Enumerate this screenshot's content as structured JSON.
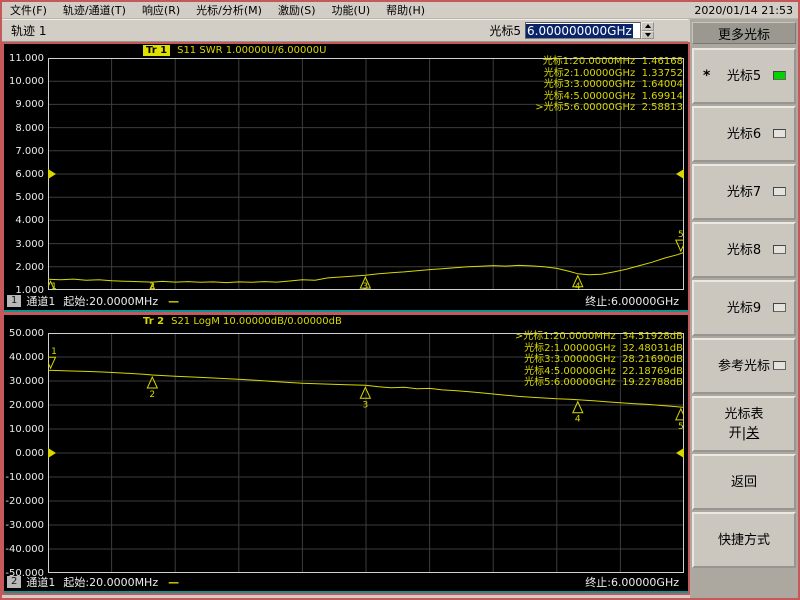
{
  "window": {
    "datetime": "2020/01/14 21:53"
  },
  "menu": {
    "items": [
      "文件(F)",
      "轨迹/通道(T)",
      "响应(R)",
      "光标/分析(M)",
      "激励(S)",
      "功能(U)",
      "帮助(H)"
    ]
  },
  "toolbar": {
    "trace_label": "轨迹 1",
    "marker_label": "光标5",
    "marker_value": "6.000000000GHz"
  },
  "sidebar": {
    "header": "更多光标",
    "buttons": [
      {
        "label": "光标5",
        "starred": true,
        "indicator": "on"
      },
      {
        "label": "光标6",
        "indicator": "off"
      },
      {
        "label": "光标7",
        "indicator": "off"
      },
      {
        "label": "光标8",
        "indicator": "off"
      },
      {
        "label": "光标9",
        "indicator": "off"
      },
      {
        "label": "参考光标",
        "indicator": "off"
      },
      {
        "label": "光标表",
        "label2": "开|关"
      },
      {
        "label": "返回"
      },
      {
        "label": "快捷方式"
      }
    ]
  },
  "colors": {
    "trace": "#d8d800",
    "grid": "#3c3c3c",
    "plot_border": "#d0d0d0",
    "accent_red": "#c4585a",
    "teal": "#0e9494",
    "led_green": "#00d400",
    "selection_blue": "#0a246a"
  },
  "chart_data": [
    {
      "type": "line",
      "name": "S11 SWR",
      "trace_badge": "Tr 1",
      "badge_highlight": true,
      "title": "S11 SWR 1.00000U/6.00000U",
      "ylim": [
        1.0,
        11.0
      ],
      "ytick_step": 1.0,
      "ref_value": 6.0,
      "x_start": 0.02,
      "x_stop": 6.0,
      "x_unit": "GHz",
      "channel_badge": "1",
      "channel_label": "通道1",
      "start_label": "起始:20.0000MHz",
      "stop_label": "终止:6.00000GHz",
      "readouts": [
        {
          "label": "光标1:20.0000MHz",
          "value": "1.46168",
          "active": false
        },
        {
          "label": "光标2:1.00000GHz",
          "value": "1.33752",
          "active": false
        },
        {
          "label": "光标3:3.00000GHz",
          "value": "1.64004",
          "active": false
        },
        {
          "label": "光标4:5.00000GHz",
          "value": "1.69914",
          "active": false
        },
        {
          "label": "光标5:6.00000GHz",
          "value": "2.58813",
          "active": true
        }
      ],
      "markers": [
        {
          "n": "1",
          "x": 0.004,
          "v": 1.46,
          "active": false
        },
        {
          "n": "2",
          "x": 0.164,
          "v": 1.34,
          "active": false
        },
        {
          "n": "3",
          "x": 0.499,
          "v": 1.64,
          "active": false
        },
        {
          "n": "4",
          "x": 0.833,
          "v": 1.7,
          "active": false
        },
        {
          "n": "5",
          "x": 0.995,
          "v": 2.59,
          "active": true
        }
      ],
      "trace": [
        [
          0,
          1.46
        ],
        [
          0.02,
          1.44
        ],
        [
          0.04,
          1.47
        ],
        [
          0.06,
          1.42
        ],
        [
          0.08,
          1.44
        ],
        [
          0.1,
          1.4
        ],
        [
          0.12,
          1.38
        ],
        [
          0.14,
          1.36
        ],
        [
          0.164,
          1.34
        ],
        [
          0.18,
          1.37
        ],
        [
          0.2,
          1.34
        ],
        [
          0.22,
          1.36
        ],
        [
          0.24,
          1.33
        ],
        [
          0.26,
          1.35
        ],
        [
          0.28,
          1.32
        ],
        [
          0.3,
          1.35
        ],
        [
          0.32,
          1.33
        ],
        [
          0.34,
          1.36
        ],
        [
          0.36,
          1.34
        ],
        [
          0.38,
          1.39
        ],
        [
          0.4,
          1.44
        ],
        [
          0.42,
          1.42
        ],
        [
          0.44,
          1.52
        ],
        [
          0.46,
          1.56
        ],
        [
          0.48,
          1.6
        ],
        [
          0.499,
          1.64
        ],
        [
          0.52,
          1.7
        ],
        [
          0.54,
          1.74
        ],
        [
          0.56,
          1.78
        ],
        [
          0.58,
          1.83
        ],
        [
          0.6,
          1.88
        ],
        [
          0.62,
          1.92
        ],
        [
          0.64,
          1.96
        ],
        [
          0.66,
          2.0
        ],
        [
          0.68,
          2.02
        ],
        [
          0.7,
          2.05
        ],
        [
          0.72,
          2.03
        ],
        [
          0.74,
          2.06
        ],
        [
          0.76,
          2.04
        ],
        [
          0.78,
          2.0
        ],
        [
          0.8,
          1.93
        ],
        [
          0.82,
          1.8
        ],
        [
          0.833,
          1.7
        ],
        [
          0.85,
          1.66
        ],
        [
          0.87,
          1.68
        ],
        [
          0.89,
          1.78
        ],
        [
          0.91,
          1.9
        ],
        [
          0.93,
          2.05
        ],
        [
          0.95,
          2.2
        ],
        [
          0.97,
          2.38
        ],
        [
          0.99,
          2.52
        ],
        [
          1.0,
          2.62
        ]
      ]
    },
    {
      "type": "line",
      "name": "S21 LogM",
      "trace_badge": "Tr 2",
      "badge_highlight": false,
      "title": "S21 LogM 10.00000dB/0.00000dB",
      "ylim": [
        -50.0,
        50.0
      ],
      "ytick_step": 10.0,
      "ref_value": 0.0,
      "x_start": 0.02,
      "x_stop": 6.0,
      "x_unit": "GHz",
      "channel_badge": "2",
      "channel_label": "通道1",
      "start_label": "起始:20.0000MHz",
      "stop_label": "终止:6.00000GHz",
      "readouts": [
        {
          "label": "光标1:20.0000MHz",
          "value": "34.51928dB",
          "active": true
        },
        {
          "label": "光标2:1.00000GHz",
          "value": "32.48031dB",
          "active": false
        },
        {
          "label": "光标3:3.00000GHz",
          "value": "28.21690dB",
          "active": false
        },
        {
          "label": "光标4:5.00000GHz",
          "value": "22.18769dB",
          "active": false
        },
        {
          "label": "光标5:6.00000GHz",
          "value": "19.22788dB",
          "active": false
        }
      ],
      "markers": [
        {
          "n": "1",
          "x": 0.004,
          "v": 34.5,
          "active": true
        },
        {
          "n": "2",
          "x": 0.164,
          "v": 32.48,
          "active": false
        },
        {
          "n": "3",
          "x": 0.499,
          "v": 28.22,
          "active": false
        },
        {
          "n": "4",
          "x": 0.833,
          "v": 22.19,
          "active": false
        },
        {
          "n": "5",
          "x": 0.995,
          "v": 19.23,
          "active": false
        }
      ],
      "trace": [
        [
          0,
          34.5
        ],
        [
          0.03,
          34.2
        ],
        [
          0.06,
          34.0
        ],
        [
          0.09,
          33.7
        ],
        [
          0.12,
          33.3
        ],
        [
          0.15,
          32.8
        ],
        [
          0.164,
          32.5
        ],
        [
          0.2,
          32.0
        ],
        [
          0.24,
          31.5
        ],
        [
          0.28,
          31.0
        ],
        [
          0.32,
          30.4
        ],
        [
          0.36,
          29.7
        ],
        [
          0.4,
          29.1
        ],
        [
          0.44,
          28.7
        ],
        [
          0.47,
          28.4
        ],
        [
          0.499,
          28.2
        ],
        [
          0.52,
          27.6
        ],
        [
          0.54,
          27.2
        ],
        [
          0.56,
          27.4
        ],
        [
          0.58,
          26.8
        ],
        [
          0.6,
          26.9
        ],
        [
          0.62,
          26.3
        ],
        [
          0.64,
          26.0
        ],
        [
          0.66,
          25.6
        ],
        [
          0.68,
          25.1
        ],
        [
          0.7,
          24.6
        ],
        [
          0.72,
          24.1
        ],
        [
          0.74,
          23.6
        ],
        [
          0.76,
          23.2
        ],
        [
          0.78,
          22.9
        ],
        [
          0.8,
          22.6
        ],
        [
          0.82,
          22.4
        ],
        [
          0.833,
          22.2
        ],
        [
          0.86,
          21.7
        ],
        [
          0.88,
          21.3
        ],
        [
          0.9,
          20.9
        ],
        [
          0.92,
          20.6
        ],
        [
          0.94,
          20.3
        ],
        [
          0.96,
          19.9
        ],
        [
          0.98,
          19.5
        ],
        [
          1.0,
          19.0
        ]
      ]
    }
  ]
}
